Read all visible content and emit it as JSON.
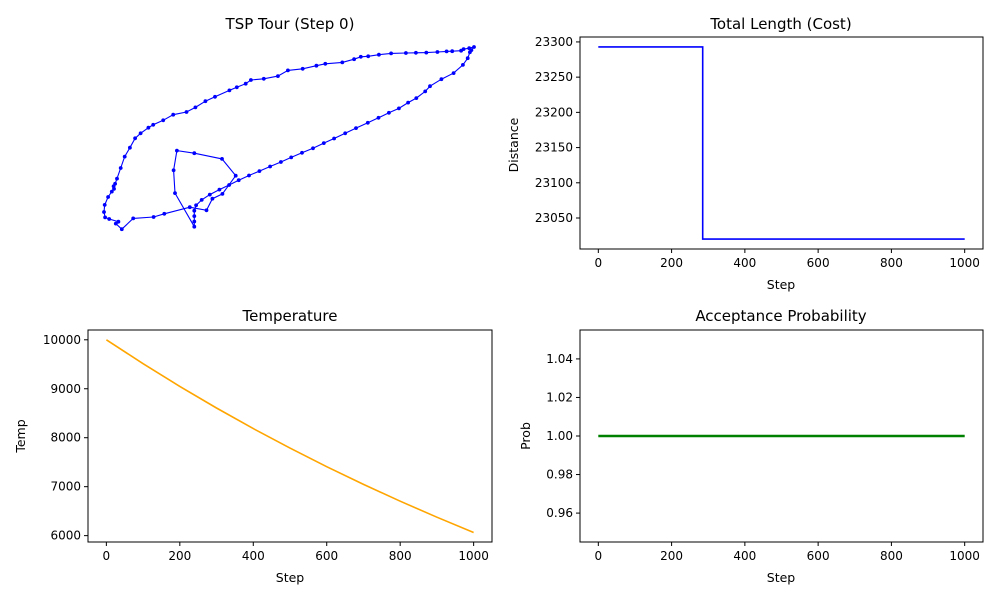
{
  "chart_data": [
    {
      "type": "scatter",
      "title": "TSP Tour (Step 0)",
      "axes_visible": false,
      "color": "#0000ff",
      "closed": true,
      "points": [
        [
          0.244,
          0.931
        ],
        [
          0.192,
          0.757
        ],
        [
          0.188,
          0.639
        ],
        [
          0.197,
          0.537
        ],
        [
          0.244,
          0.55
        ],
        [
          0.319,
          0.58
        ],
        [
          0.356,
          0.667
        ],
        [
          0.32,
          0.761
        ],
        [
          0.293,
          0.786
        ],
        [
          0.277,
          0.846
        ],
        [
          0.232,
          0.83
        ],
        [
          0.163,
          0.864
        ],
        [
          0.134,
          0.881
        ],
        [
          0.079,
          0.888
        ],
        [
          0.048,
          0.944
        ],
        [
          0.032,
          0.915
        ],
        [
          0.039,
          0.905
        ],
        [
          0.014,
          0.891
        ],
        [
          0.003,
          0.883
        ],
        [
          0.0,
          0.855
        ],
        [
          0.002,
          0.818
        ],
        [
          0.011,
          0.777
        ],
        [
          0.021,
          0.749
        ],
        [
          0.027,
          0.735
        ],
        [
          0.026,
          0.722
        ],
        [
          0.03,
          0.709
        ],
        [
          0.035,
          0.682
        ],
        [
          0.045,
          0.627
        ],
        [
          0.056,
          0.568
        ],
        [
          0.07,
          0.522
        ],
        [
          0.084,
          0.473
        ],
        [
          0.099,
          0.447
        ],
        [
          0.12,
          0.418
        ],
        [
          0.133,
          0.403
        ],
        [
          0.16,
          0.38
        ],
        [
          0.187,
          0.351
        ],
        [
          0.223,
          0.337
        ],
        [
          0.247,
          0.313
        ],
        [
          0.274,
          0.281
        ],
        [
          0.3,
          0.258
        ],
        [
          0.339,
          0.225
        ],
        [
          0.359,
          0.209
        ],
        [
          0.383,
          0.19
        ],
        [
          0.397,
          0.171
        ],
        [
          0.432,
          0.165
        ],
        [
          0.47,
          0.151
        ],
        [
          0.497,
          0.121
        ],
        [
          0.537,
          0.113
        ],
        [
          0.574,
          0.097
        ],
        [
          0.598,
          0.087
        ],
        [
          0.644,
          0.08
        ],
        [
          0.676,
          0.063
        ],
        [
          0.694,
          0.051
        ],
        [
          0.714,
          0.048
        ],
        [
          0.743,
          0.04
        ],
        [
          0.776,
          0.033
        ],
        [
          0.816,
          0.031
        ],
        [
          0.843,
          0.03
        ],
        [
          0.871,
          0.029
        ],
        [
          0.901,
          0.026
        ],
        [
          0.926,
          0.023
        ],
        [
          0.941,
          0.022
        ],
        [
          0.965,
          0.019
        ],
        [
          0.972,
          0.011
        ],
        [
          0.987,
          0.006
        ],
        [
          1.0,
          0.0
        ],
        [
          0.993,
          0.016
        ],
        [
          0.989,
          0.027
        ],
        [
          0.983,
          0.058
        ],
        [
          0.97,
          0.093
        ],
        [
          0.945,
          0.135
        ],
        [
          0.912,
          0.167
        ],
        [
          0.881,
          0.203
        ],
        [
          0.868,
          0.23
        ],
        [
          0.844,
          0.265
        ],
        [
          0.822,
          0.288
        ],
        [
          0.797,
          0.318
        ],
        [
          0.77,
          0.341
        ],
        [
          0.742,
          0.367
        ],
        [
          0.713,
          0.393
        ],
        [
          0.681,
          0.42
        ],
        [
          0.652,
          0.447
        ],
        [
          0.622,
          0.474
        ],
        [
          0.594,
          0.498
        ],
        [
          0.565,
          0.525
        ],
        [
          0.535,
          0.548
        ],
        [
          0.506,
          0.572
        ],
        [
          0.478,
          0.596
        ],
        [
          0.449,
          0.619
        ],
        [
          0.42,
          0.643
        ],
        [
          0.392,
          0.666
        ],
        [
          0.364,
          0.69
        ],
        [
          0.338,
          0.715
        ],
        [
          0.312,
          0.739
        ],
        [
          0.286,
          0.765
        ],
        [
          0.264,
          0.792
        ],
        [
          0.249,
          0.82
        ],
        [
          0.244,
          0.848
        ],
        [
          0.244,
          0.876
        ],
        [
          0.244,
          0.904
        ]
      ]
    },
    {
      "type": "line",
      "title": "Total Length (Cost)",
      "xlabel": "Step",
      "ylabel": "Distance",
      "color": "#0000ff",
      "xlim": [
        -50,
        1050
      ],
      "ylim": [
        23006,
        23307
      ],
      "xticks": [
        0,
        200,
        400,
        600,
        800,
        1000
      ],
      "yticks": [
        23050,
        23100,
        23150,
        23200,
        23250,
        23300
      ],
      "x": [
        0,
        285,
        285,
        1000
      ],
      "y": [
        23293,
        23293,
        23020,
        23020
      ]
    },
    {
      "type": "line",
      "title": "Temperature",
      "xlabel": "Step",
      "ylabel": "Temp",
      "color": "#ffa500",
      "xlim": [
        -50,
        1050
      ],
      "ylim": [
        5870,
        10200
      ],
      "xticks": [
        0,
        200,
        400,
        600,
        800,
        1000
      ],
      "yticks": [
        6000,
        7000,
        8000,
        9000,
        10000
      ],
      "x": [
        0,
        100,
        200,
        300,
        400,
        500,
        600,
        700,
        800,
        900,
        1000
      ],
      "y": [
        10000,
        9512,
        9048,
        8607,
        8187,
        7788,
        7408,
        7047,
        6703,
        6376,
        6065
      ]
    },
    {
      "type": "line",
      "title": "Acceptance Probability",
      "xlabel": "Step",
      "ylabel": "Prob",
      "color": "#008000",
      "xlim": [
        -50,
        1050
      ],
      "ylim": [
        0.945,
        1.055
      ],
      "xticks": [
        0,
        200,
        400,
        600,
        800,
        1000
      ],
      "yticks": [
        0.96,
        0.98,
        1.0,
        1.02,
        1.04
      ],
      "ytick_decimals": 2,
      "x": [
        0,
        1000
      ],
      "y": [
        1.0,
        1.0
      ]
    }
  ]
}
